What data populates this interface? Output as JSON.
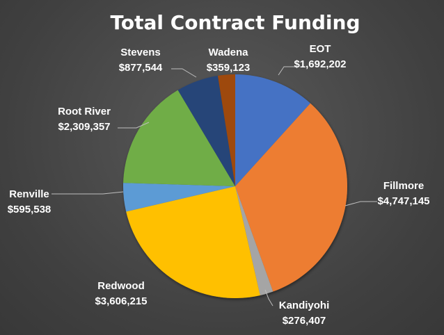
{
  "chart_data": {
    "type": "pie",
    "title": "Total Contract Funding",
    "start_angle_deg": 0,
    "direction": "clockwise",
    "slices": [
      {
        "name": "EOT",
        "value": 1692202,
        "value_label": "$1,692,202",
        "color": "#4472C4"
      },
      {
        "name": "Fillmore",
        "value": 4747145,
        "value_label": "$4,747,145",
        "color": "#ED7D31"
      },
      {
        "name": "Kandiyohi",
        "value": 276407,
        "value_label": "$276,407",
        "color": "#A5A5A5"
      },
      {
        "name": "Redwood",
        "value": 3606215,
        "value_label": "$3,606,215",
        "color": "#FFC000"
      },
      {
        "name": "Renville",
        "value": 595538,
        "value_label": "$595,538",
        "color": "#5B9BD5"
      },
      {
        "name": "Root River",
        "value": 2309357,
        "value_label": "$2,309,357",
        "color": "#70AD47"
      },
      {
        "name": "Stevens",
        "value": 877544,
        "value_label": "$877,544",
        "color": "#264478"
      },
      {
        "name": "Wadena",
        "value": 359123,
        "value_label": "$359,123",
        "color": "#9E480E"
      }
    ]
  }
}
